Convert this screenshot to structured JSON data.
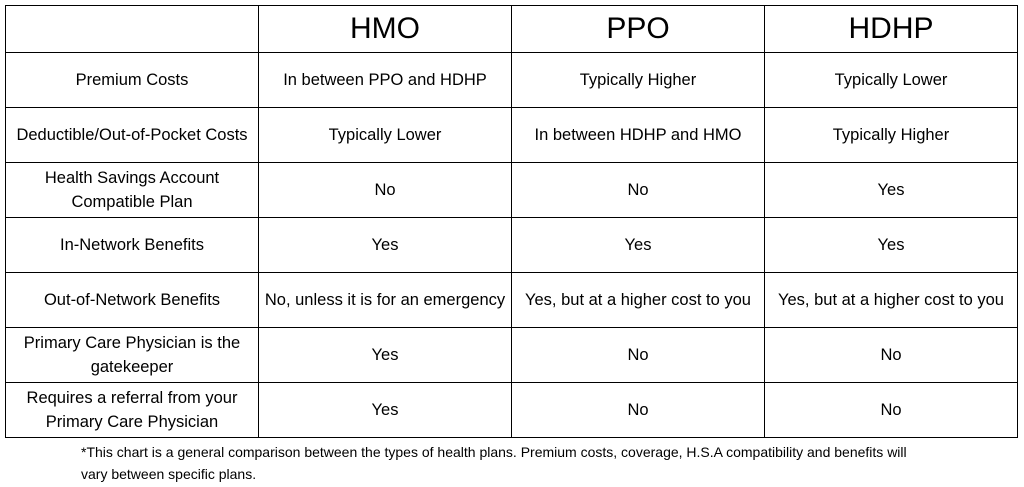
{
  "table": {
    "corner": "",
    "columns": [
      "HMO",
      "PPO",
      "HDHP"
    ],
    "rows": [
      {
        "label": "Premium Costs",
        "values": [
          "In between PPO and HDHP",
          "Typically Higher",
          "Typically Lower"
        ]
      },
      {
        "label": "Deductible/Out-of-Pocket Costs",
        "values": [
          "Typically Lower",
          "In between HDHP and HMO",
          "Typically Higher"
        ]
      },
      {
        "label": "Health Savings Account Compatible Plan",
        "values": [
          "No",
          "No",
          "Yes"
        ]
      },
      {
        "label": "In-Network Benefits",
        "values": [
          "Yes",
          "Yes",
          "Yes"
        ]
      },
      {
        "label": "Out-of-Network Benefits",
        "values": [
          "No, unless it is for an emergency",
          "Yes, but at a higher cost to you",
          "Yes, but at a higher cost to you"
        ]
      },
      {
        "label": "Primary Care Physician is the gatekeeper",
        "values": [
          "Yes",
          "No",
          "No"
        ]
      },
      {
        "label": "Requires a referral from your Primary Care Physician",
        "values": [
          "Yes",
          "No",
          "No"
        ]
      }
    ]
  },
  "footnote": "*This chart is a general comparison between the types of health plans. Premium costs, coverage, H.S.A compatibility and benefits will vary between specific plans."
}
